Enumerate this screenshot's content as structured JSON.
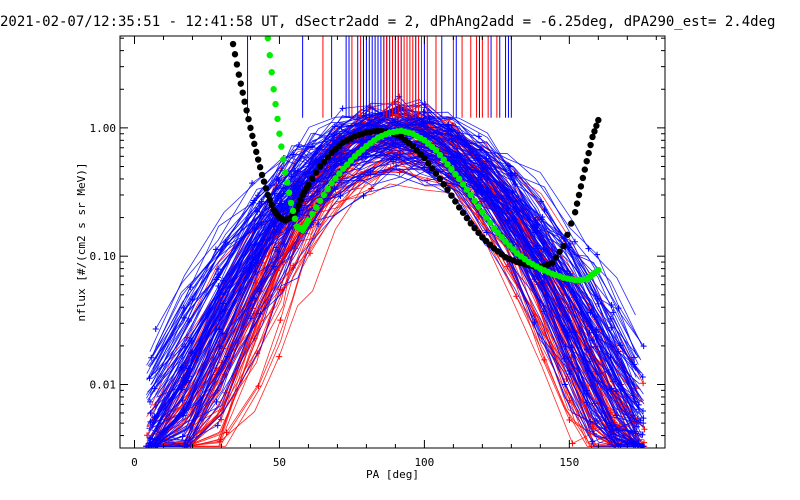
{
  "chart_data": {
    "type": "line",
    "title": "2021-02-07/12:35:51 - 12:41:58 UT, dSectr2add = 2, dPhAng2add = -6.25deg, dPA290_est=   2.4deg",
    "xlabel": "PA [deg]",
    "ylabel": "nflux [#/(cm2 s sr MeV)]",
    "xlim": [
      -5,
      183
    ],
    "ylim": [
      0.0032,
      5.2
    ],
    "yscale": "log",
    "x_ticks": [
      0,
      50,
      100,
      150
    ],
    "x_tick_labels": [
      "0",
      "50",
      "100",
      "150"
    ],
    "y_ticks": [
      0.01,
      0.1,
      1.0
    ],
    "y_tick_labels": [
      "0.01",
      "0.10",
      "1.00"
    ],
    "grid": false,
    "colors": {
      "red_series": "#ff0000",
      "blue_series": "#0000ff",
      "black_fit": "#000000",
      "green_fit": "#00ee00",
      "axes": "#000000"
    },
    "series": [
      {
        "color": "#000000",
        "style": "thick-dotted",
        "x": [
          34,
          36,
          38,
          40,
          42,
          44,
          46,
          48,
          50,
          52,
          54,
          56,
          58,
          60,
          64,
          68,
          72,
          76,
          80,
          84,
          88,
          92,
          96,
          100,
          104,
          108,
          112,
          116,
          120,
          124,
          128,
          132,
          136,
          140,
          144,
          148,
          152,
          154,
          156,
          158,
          160
        ],
        "y": [
          4.5,
          2.6,
          1.6,
          1.0,
          0.65,
          0.43,
          0.3,
          0.23,
          0.2,
          0.19,
          0.2,
          0.23,
          0.3,
          0.36,
          0.5,
          0.64,
          0.77,
          0.86,
          0.92,
          0.95,
          0.93,
          0.85,
          0.72,
          0.58,
          0.44,
          0.33,
          0.24,
          0.18,
          0.14,
          0.115,
          0.098,
          0.09,
          0.085,
          0.082,
          0.088,
          0.12,
          0.22,
          0.35,
          0.55,
          0.85,
          1.15
        ]
      },
      {
        "color": "#00ee00",
        "style": "thick-dotted",
        "x": [
          46,
          48,
          50,
          52,
          54,
          56,
          58,
          60,
          64,
          68,
          72,
          76,
          80,
          84,
          88,
          92,
          96,
          100,
          104,
          108,
          112,
          116,
          120,
          124,
          128,
          132,
          136,
          140,
          144,
          148,
          152,
          156,
          158,
          160
        ],
        "y": [
          5.0,
          2.0,
          0.9,
          0.45,
          0.26,
          0.17,
          0.16,
          0.19,
          0.27,
          0.37,
          0.48,
          0.6,
          0.72,
          0.84,
          0.92,
          0.95,
          0.9,
          0.8,
          0.67,
          0.52,
          0.4,
          0.3,
          0.22,
          0.165,
          0.13,
          0.105,
          0.09,
          0.08,
          0.073,
          0.068,
          0.065,
          0.066,
          0.072,
          0.078
        ]
      }
    ],
    "vertical_markers": [
      {
        "color": "#0000ff",
        "x": [
          39,
          58,
          68,
          73,
          74,
          77,
          79,
          80,
          81,
          82,
          83,
          84,
          85,
          86,
          87,
          88,
          89,
          90,
          91,
          92,
          97,
          100,
          106,
          111,
          119,
          123,
          126,
          128,
          129,
          130
        ]
      },
      {
        "color": "#ff0000",
        "x": [
          65,
          75,
          78,
          86,
          87,
          88,
          89,
          90,
          91,
          92,
          93,
          94,
          95,
          96,
          97,
          98,
          99,
          101,
          104,
          110,
          113,
          116,
          118,
          120,
          122,
          125
        ]
      }
    ]
  }
}
